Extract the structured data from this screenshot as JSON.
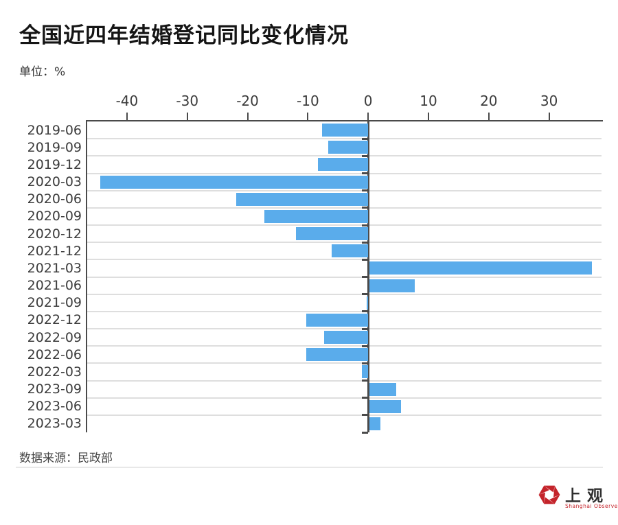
{
  "header": {
    "title": "全国近四年结婚登记同比变化情况",
    "unit_label": "单位：%"
  },
  "chart_data": {
    "type": "bar",
    "orientation": "horizontal",
    "title": "全国近四年结婚登记同比变化情况",
    "unit": "%",
    "categories": [
      "2019-06",
      "2019-09",
      "2019-12",
      "2020-03",
      "2020-06",
      "2020-09",
      "2020-12",
      "2021-12",
      "2021-03",
      "2021-06",
      "2021-09",
      "2022-12",
      "2022-09",
      "2022-06",
      "2022-03",
      "2023-09",
      "2023-06",
      "2023-03"
    ],
    "values": [
      -7.6,
      -6.6,
      -8.3,
      -44.4,
      -21.9,
      -17.2,
      -12.0,
      -6.0,
      36.9,
      7.5,
      -0.3,
      -10.3,
      -7.3,
      -10.3,
      -1.1,
      4.5,
      5.3,
      1.9
    ],
    "xticks": [
      -40,
      -30,
      -20,
      -10,
      0,
      10,
      20,
      30
    ],
    "xlim": [
      -46.6,
      38.7
    ],
    "bar_color": "#5AACEB",
    "grid": true,
    "legend": "none"
  },
  "footer": {
    "source": "数据来源：民政部"
  },
  "logo": {
    "name": "上观",
    "subtitle": "Shanghai Observer",
    "accent_color": "#c4242b"
  }
}
